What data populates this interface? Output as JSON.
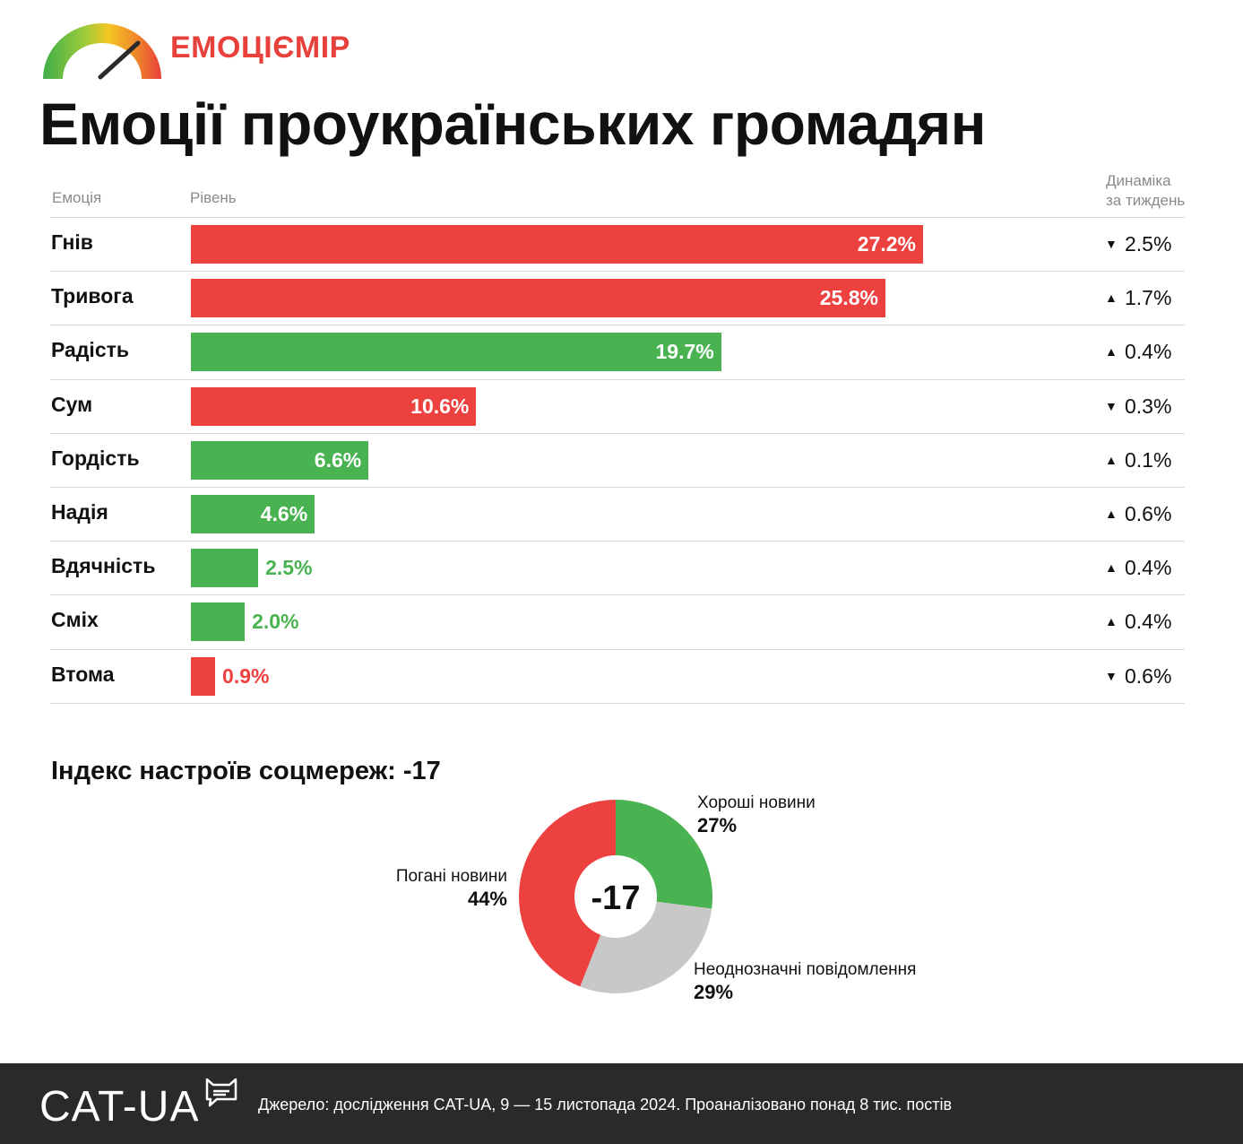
{
  "header": {
    "brand": "ЕМОЦІЄМІР",
    "title": "Емоції проукраїнських громадян"
  },
  "table_headers": {
    "emotion": "Емоція",
    "level": "Рівень",
    "dynamics_line1": "Динаміка",
    "dynamics_line2": "за тиждень"
  },
  "colors": {
    "negative": "#ec413e",
    "positive": "#4ab351",
    "neutral": "#c8c8c8",
    "brand": "#e8403a",
    "footer_bg": "#2a2a2a"
  },
  "chart_data": [
    {
      "type": "bar",
      "orientation": "horizontal",
      "categories": [
        "Гнів",
        "Тривога",
        "Радість",
        "Сум",
        "Гордість",
        "Надія",
        "Вдячність",
        "Сміх",
        "Втома"
      ],
      "values": [
        27.2,
        25.8,
        19.7,
        10.6,
        6.6,
        4.6,
        2.5,
        2.0,
        0.9
      ],
      "value_labels": [
        "27.2%",
        "25.8%",
        "19.7%",
        "10.6%",
        "6.6%",
        "4.6%",
        "2.5%",
        "2.0%",
        "0.9%"
      ],
      "sentiment": [
        "negative",
        "negative",
        "positive",
        "negative",
        "positive",
        "positive",
        "positive",
        "positive",
        "negative"
      ],
      "weekly_change": [
        {
          "direction": "down",
          "label": "2.5%"
        },
        {
          "direction": "up",
          "label": "1.7%"
        },
        {
          "direction": "up",
          "label": "0.4%"
        },
        {
          "direction": "down",
          "label": "0.3%"
        },
        {
          "direction": "up",
          "label": "0.1%"
        },
        {
          "direction": "up",
          "label": "0.6%"
        },
        {
          "direction": "up",
          "label": "0.4%"
        },
        {
          "direction": "up",
          "label": "0.4%"
        },
        {
          "direction": "down",
          "label": "0.6%"
        }
      ],
      "xlim": [
        0,
        40
      ],
      "grid": false,
      "title": "",
      "xlabel": "",
      "ylabel": ""
    },
    {
      "type": "pie",
      "donut": true,
      "title": "Індекс настроїв соцмереж: -17",
      "center_label": "-17",
      "slices": [
        {
          "name": "Хороші новини",
          "value": 27,
          "label": "27%",
          "sentiment": "positive"
        },
        {
          "name": "Неоднозначні повідомлення",
          "value": 29,
          "label": "29%",
          "sentiment": "neutral"
        },
        {
          "name": "Погані новини",
          "value": 44,
          "label": "44%",
          "sentiment": "negative"
        }
      ]
    }
  ],
  "footer": {
    "logo": "CAT-UA",
    "source": "Джерело: дослідження CAT-UA, 9 — 15 листопада 2024. Проаналізовано понад 8 тис. постів"
  }
}
